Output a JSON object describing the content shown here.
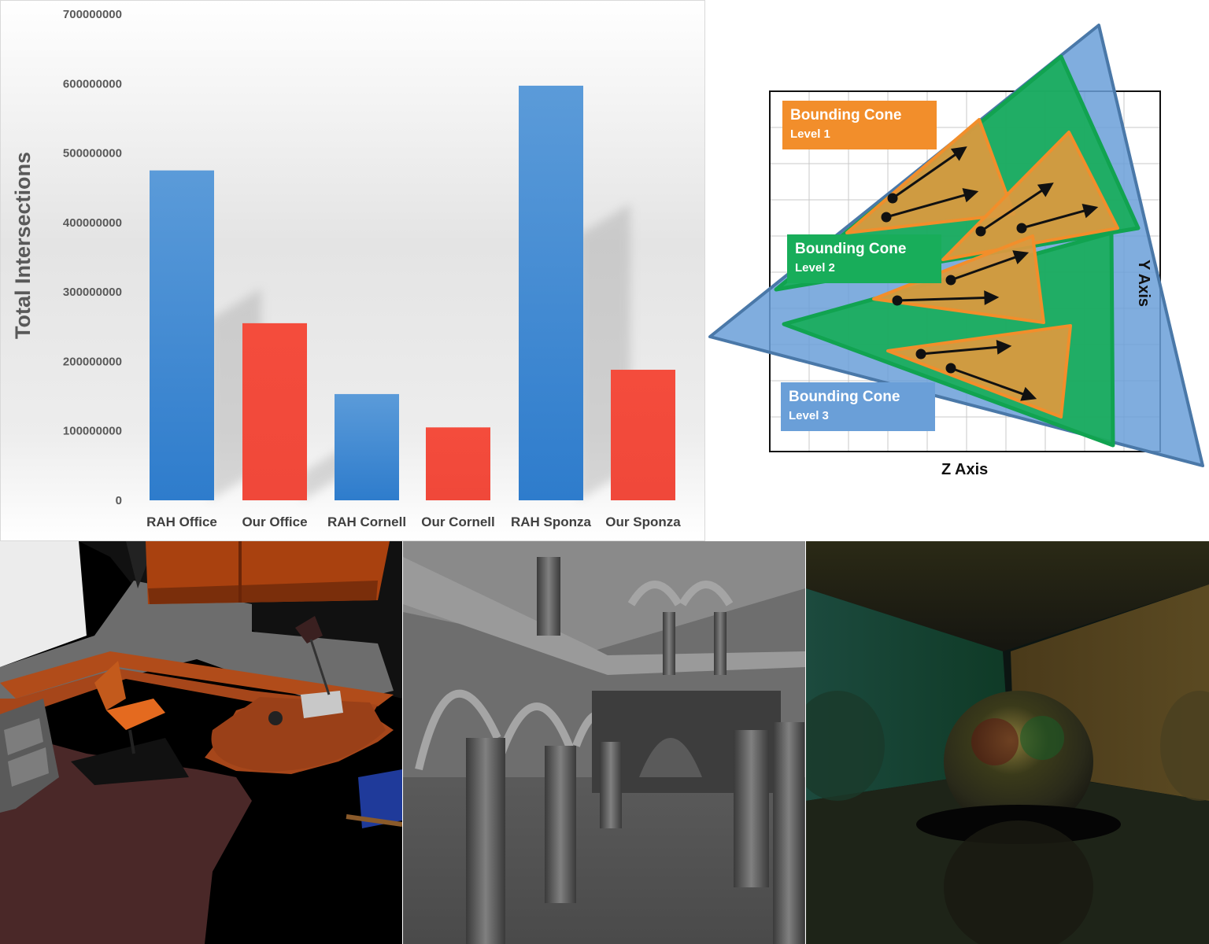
{
  "chart_data": {
    "type": "bar",
    "title": "",
    "xlabel": "",
    "ylabel": "Total Intersections",
    "ylim": [
      0,
      700000000
    ],
    "yticks": [
      0,
      100000000,
      200000000,
      300000000,
      400000000,
      500000000,
      600000000,
      700000000
    ],
    "ytick_labels": [
      "0",
      "100000000",
      "200000000",
      "300000000",
      "400000000",
      "500000000",
      "600000000",
      "700000000"
    ],
    "categories": [
      "RAH Office",
      "Our Office",
      "RAH Cornell",
      "Our Cornell",
      "RAH Sponza",
      "Our Sponza"
    ],
    "values": [
      475000000,
      255000000,
      153000000,
      105000000,
      597000000,
      188000000
    ],
    "bar_colors": [
      "#3f87d2",
      "#f44c3c",
      "#3f87d2",
      "#f44c3c",
      "#3f87d2",
      "#f44c3c"
    ],
    "grid": false,
    "legend": "none"
  },
  "diagram": {
    "colors": {
      "level1": "#f28e2b",
      "level2": "#18ad5a",
      "level3": "#6a9fd8",
      "arrow": "#111111"
    },
    "labels": [
      {
        "title": "Bounding Cone",
        "level": "Level 1"
      },
      {
        "title": "Bounding Cone",
        "level": "Level 2"
      },
      {
        "title": "Bounding Cone",
        "level": "Level 3"
      }
    ],
    "x_axis": "Z Axis",
    "y_axis": "Y Axis"
  },
  "renders": [
    {
      "scene": "office"
    },
    {
      "scene": "sponza"
    },
    {
      "scene": "cornell"
    }
  ]
}
